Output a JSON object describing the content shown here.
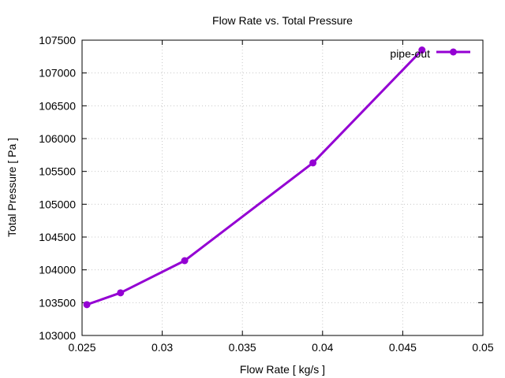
{
  "chart_data": {
    "type": "line",
    "title": "Flow Rate vs. Total Pressure",
    "xlabel": "Flow Rate [ kg/s ]",
    "ylabel": "Total Pressure [ Pa ]",
    "xlim": [
      0.025,
      0.05
    ],
    "ylim": [
      103000,
      107500
    ],
    "xticks": [
      0.025,
      0.03,
      0.035,
      0.04,
      0.045,
      0.05
    ],
    "xtick_labels": [
      "0.025",
      "0.03",
      "0.035",
      "0.04",
      "0.045",
      "0.05"
    ],
    "yticks": [
      103000,
      103500,
      104000,
      104500,
      105000,
      105500,
      106000,
      106500,
      107000,
      107500
    ],
    "ytick_labels": [
      "103000",
      "103500",
      "104000",
      "104500",
      "105000",
      "105500",
      "106000",
      "106500",
      "107000",
      "107500"
    ],
    "grid": true,
    "legend_position": "top-right",
    "series": [
      {
        "name": "pipe-out",
        "color": "#9400d3",
        "x": [
          0.0253,
          0.0274,
          0.0314,
          0.0394,
          0.0462
        ],
        "y": [
          103470,
          103650,
          104140,
          105630,
          107350
        ]
      }
    ]
  }
}
